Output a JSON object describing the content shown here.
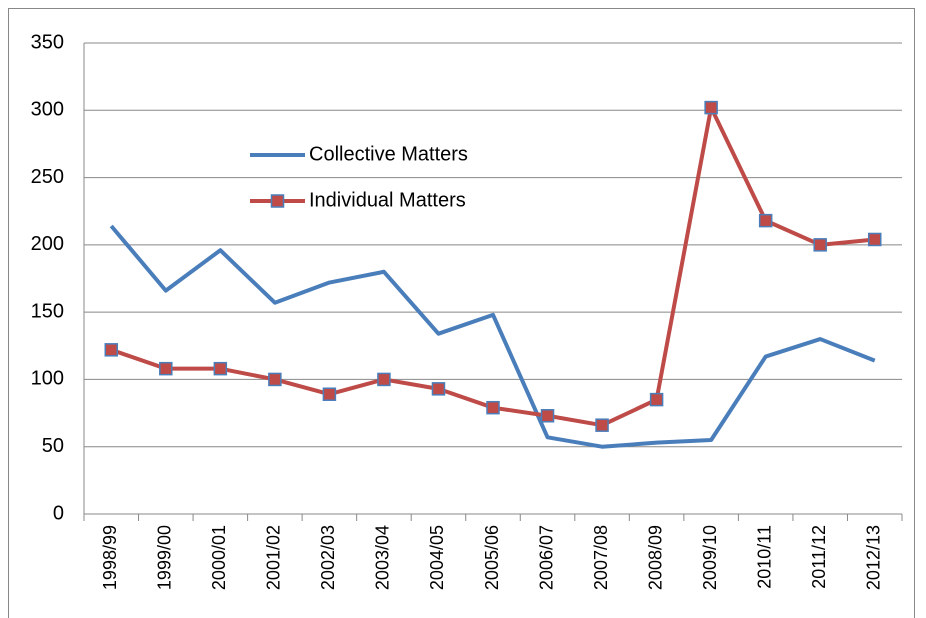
{
  "chart_data": {
    "type": "line",
    "categories": [
      "1998/99",
      "1999/00",
      "2000/01",
      "2001/02",
      "2002/03",
      "2003/04",
      "2004/05",
      "2005/06",
      "2006/07",
      "2007/08",
      "2008/09",
      "2009/10",
      "2010/11",
      "2011/12",
      "2012/13"
    ],
    "series": [
      {
        "name": "Collective Matters",
        "color": "#4a7ebb",
        "marker": false,
        "values": [
          214,
          166,
          196,
          157,
          172,
          180,
          134,
          148,
          57,
          50,
          53,
          55,
          117,
          130,
          114
        ]
      },
      {
        "name": "Individual Matters",
        "color": "#be4b48",
        "marker": true,
        "values": [
          122,
          108,
          108,
          100,
          89,
          100,
          93,
          79,
          73,
          66,
          85,
          302,
          218,
          200,
          204
        ]
      }
    ],
    "ylim": [
      0,
      350
    ],
    "yticks": [
      0,
      50,
      100,
      150,
      200,
      250,
      300,
      350
    ],
    "grid": true,
    "legend": "upper left inside"
  }
}
